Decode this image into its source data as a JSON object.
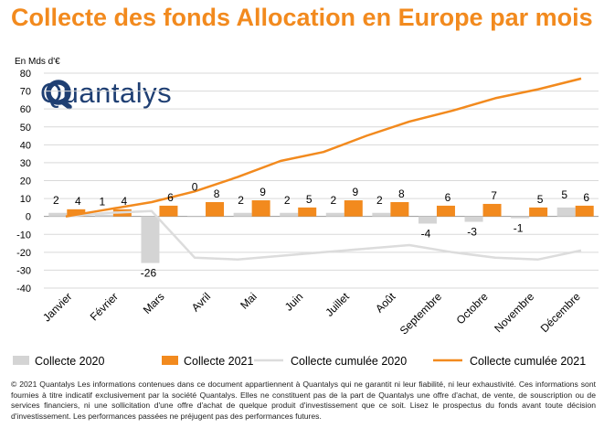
{
  "title": "Collecte des fonds Allocation en Europe par mois",
  "logo": {
    "text": "Quantalys"
  },
  "footer": "© 2021 Quantalys Les informations contenues dans ce document appartiennent à Quantalys qui ne garantit ni leur fiabilité, ni leur exhaustivité. Ces informations sont fournies à titre indicatif exclusivement par la société Quantalys. Elles ne constituent pas de la part de Quantalys une offre d'achat, de vente, de souscription ou de services financiers, ni une sollicitation d'une offre d'achat de quelque produit d'investissement que ce soit. Lisez le prospectus du fonds avant toute décision d'investissement. Les performances passées ne préjugent pas des performances futures.",
  "colors": {
    "c2020": "#d4d4d4",
    "c2021": "#f28a1e",
    "cum2020": "#dcdcdc",
    "cum2021": "#f28a1e",
    "grid": "#d9d9d9",
    "title": "#f28a1e",
    "logo": "#1f3f73"
  },
  "chart_data": {
    "type": "bar",
    "ylabel": "En Mds d'€",
    "ylim": [
      -40,
      80
    ],
    "yticks": [
      -40,
      -30,
      -20,
      -10,
      0,
      10,
      20,
      30,
      40,
      50,
      60,
      70,
      80
    ],
    "grid": true,
    "legend_position": "bottom",
    "categories": [
      "Janvier",
      "Février",
      "Mars",
      "Avril",
      "Mai",
      "Juin",
      "Juillet",
      "Août",
      "Septembre",
      "Octobre",
      "Novembre",
      "Décembre"
    ],
    "series": [
      {
        "name": "Collecte 2020",
        "type": "bar",
        "values": [
          2,
          1,
          -26,
          0,
          2,
          2,
          2,
          2,
          -4,
          -3,
          -1,
          5
        ],
        "labels": [
          "2",
          "1",
          "-26",
          "0",
          "2",
          "2",
          "2",
          "2",
          "-4",
          "-3",
          "-1",
          "5"
        ]
      },
      {
        "name": "Collecte 2021",
        "type": "bar",
        "values": [
          4,
          4,
          6,
          8,
          9,
          5,
          9,
          8,
          6,
          7,
          5,
          6
        ],
        "labels": [
          "4",
          "4",
          "6",
          "8",
          "9",
          "5",
          "9",
          "8",
          "6",
          "7",
          "5",
          "6"
        ]
      },
      {
        "name": "Collecte cumulée 2020",
        "type": "line",
        "values": [
          2,
          3,
          -23,
          -24,
          -22,
          -20,
          -18,
          -16,
          -20,
          -23,
          -24,
          -19
        ]
      },
      {
        "name": "Collecte cumulée 2021",
        "type": "line",
        "values": [
          4,
          8,
          14,
          22,
          31,
          36,
          45,
          53,
          59,
          66,
          71,
          77
        ]
      }
    ]
  }
}
